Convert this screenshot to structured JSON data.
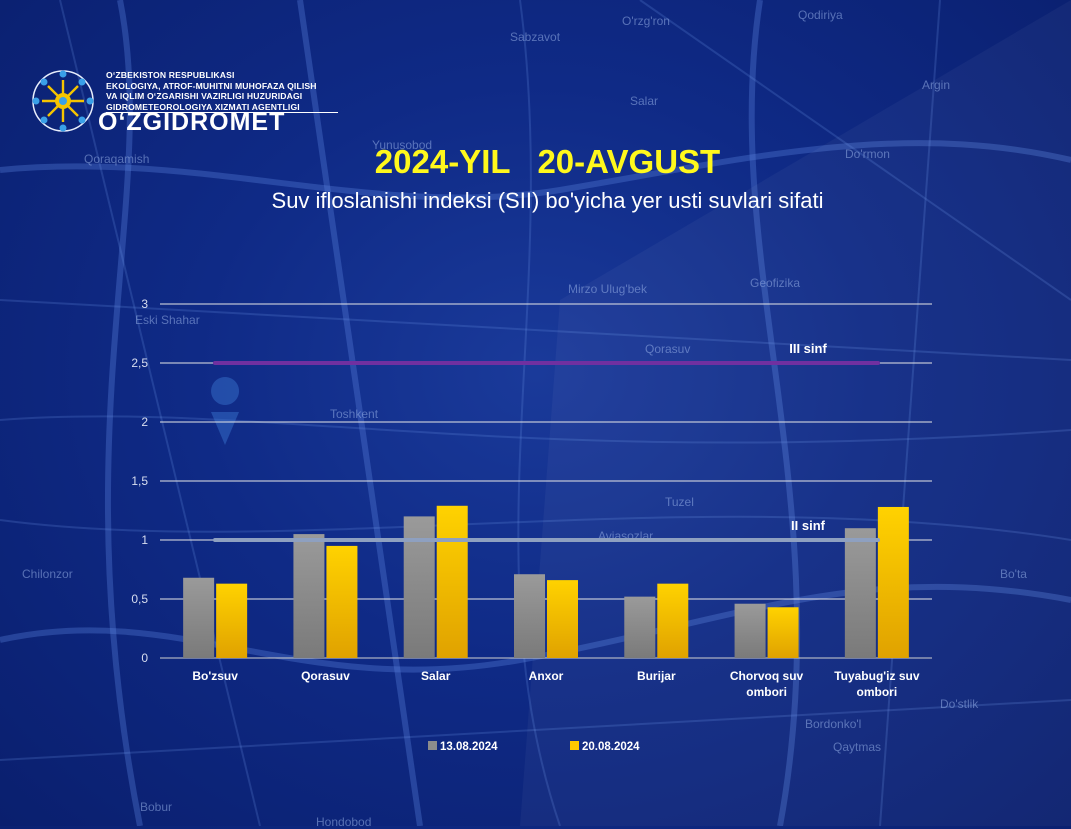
{
  "logo": {
    "lines": [
      "O‘ZBEKISTON RESPUBLIKASI",
      "EKOLOGIYA, ATROF-MUHITNI MUHOFAZA QILISH",
      "VA IQLIM O‘ZGARISHI VAZIRLIGI HUZURIDAGI",
      "GIDROMETEOROLOGIYA XIZMATI AGENTLIGI"
    ],
    "brand": "O‘ZGIDROMET",
    "emblem_icon": "snowflake-sun-emblem-icon"
  },
  "header": {
    "title": "2024-YIL   20-AVGUST",
    "subtitle": "Suv ifloslanishi indeksi (SII) bo'yicha yer usti suvlari sifati"
  },
  "map_labels": [
    "O'rzg'ron",
    "Qodiriya",
    "Sabzavot",
    "Salar",
    "Argin",
    "Qoraqamish",
    "Yunusobod",
    "Do'rmon",
    "Eski Shahar",
    "Mirzo Ulug'bek",
    "Geofizika",
    "Qorasuv",
    "Toshkent",
    "Tuzel",
    "Aviasozlar",
    "Chilonzor",
    "Bo'ta",
    "Do'stlik",
    "Bordonko'l",
    "Qaytmas",
    "Bobur",
    "Hondobod"
  ],
  "colors": {
    "background": "#0f2a86",
    "title": "#fff81c",
    "series_1": "#8c8c8c",
    "series_2": "#ffc800",
    "line_iii": "#7030a0",
    "line_ii": "#8ea0c0"
  },
  "chart_data": {
    "type": "bar",
    "title": "Suv ifloslanishi indeksi (SII) bo'yicha yer usti suvlari sifati",
    "categories": [
      "Bo'zsuv",
      "Qorasuv",
      "Salar",
      "Anxor",
      "Burijar",
      "Chorvoq suv\nombori",
      "Tuyabug'iz suv\nombori"
    ],
    "series": [
      {
        "name": "13.08.2024",
        "color": "#8c8c8c",
        "values": [
          0.68,
          1.05,
          1.2,
          0.71,
          0.52,
          0.46,
          1.1
        ]
      },
      {
        "name": "20.08.2024",
        "color": "#ffc800",
        "values": [
          0.63,
          0.95,
          1.29,
          0.66,
          0.63,
          0.43,
          1.28
        ]
      }
    ],
    "ylim": [
      0,
      3
    ],
    "yticks": [
      0,
      0.5,
      1,
      1.5,
      2,
      2.5,
      3
    ],
    "ytick_labels": [
      "0",
      "0,5",
      "1",
      "1,5",
      "2",
      "2,5",
      "3"
    ],
    "grid": true,
    "legend_position": "bottom",
    "reference_lines": [
      {
        "label": "III sinf",
        "value": 2.5,
        "color": "#7030a0"
      },
      {
        "label": "II sinf",
        "value": 1.0,
        "color": "#8ea0c0"
      }
    ]
  }
}
